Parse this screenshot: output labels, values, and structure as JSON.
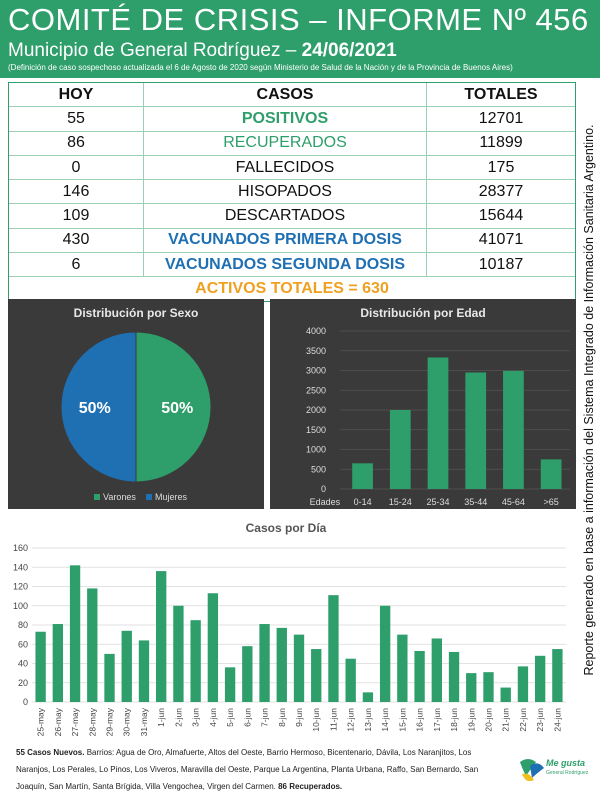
{
  "header": {
    "title": "COMITÉ DE CRISIS – INFORME Nº 456",
    "subtitle": "Municipio de General Rodríguez – ",
    "date": "24/06/2021",
    "note": "(Definición de caso sospechoso actualizada el 6 de Agosto de 2020 según Ministerio de Salud de la Nación y de la Provincia de Buenos Aires)"
  },
  "table": {
    "headers": {
      "hoy": "HOY",
      "casos": "CASOS",
      "totales": "TOTALES"
    },
    "rows": [
      {
        "hoy": "55",
        "casos": "POSITIVOS",
        "totales": "12701"
      },
      {
        "hoy": "86",
        "casos": "RECUPERADOS",
        "totales": "11899"
      },
      {
        "hoy": "0",
        "casos": "FALLECIDOS",
        "totales": "175"
      },
      {
        "hoy": "146",
        "casos": "HISOPADOS",
        "totales": "28377"
      },
      {
        "hoy": "109",
        "casos": "DESCARTADOS",
        "totales": "15644"
      },
      {
        "hoy": "430",
        "casos": "VACUNADOS PRIMERA DOSIS",
        "totales": "41071"
      },
      {
        "hoy": "6",
        "casos": "VACUNADOS SEGUNDA DOSIS",
        "totales": "10187"
      }
    ],
    "activos": "ACTIVOS TOTALES = 630"
  },
  "colors": {
    "green": "#2e9e6b",
    "blue": "#1f6fb3",
    "orange": "#f0a020",
    "bar": "#2e9e6b",
    "panel": "#3a3a3a"
  },
  "chart_data": [
    {
      "type": "pie",
      "title": "Distribución por Sexo",
      "categories": [
        "Varones",
        "Mujeres"
      ],
      "values": [
        50,
        50
      ],
      "labels": [
        "50%",
        "50%"
      ],
      "colors": [
        "#2e9e6b",
        "#1f6fb3"
      ],
      "legend": "bottom"
    },
    {
      "type": "bar",
      "title": "Distribución por Edad",
      "xlabel": "Edades",
      "categories": [
        "0-14",
        "15-24",
        "25-34",
        "35-44",
        "45-64",
        ">65"
      ],
      "values": [
        650,
        2000,
        3330,
        2950,
        2990,
        750
      ],
      "ylim": [
        0,
        4000
      ],
      "yticks": [
        "0",
        "500",
        "1000",
        "1500",
        "2000",
        "2500",
        "3000",
        "3500",
        "4000"
      ],
      "grid": true
    },
    {
      "type": "bar",
      "title": "Casos por Día",
      "categories": [
        "25-may",
        "26-may",
        "27-may",
        "28-may",
        "29-may",
        "30-may",
        "31-may",
        "1-jun",
        "2-jun",
        "3-jun",
        "4-jun",
        "5-jun",
        "6-jun",
        "7-jun",
        "8-jun",
        "9-jun",
        "10-jun",
        "11-jun",
        "12-jun",
        "13-jun",
        "14-jun",
        "15-jun",
        "16-jun",
        "17-jun",
        "18-jun",
        "19-jun",
        "20-jun",
        "21-jun",
        "22-jun",
        "23-jun",
        "24-jun"
      ],
      "values": [
        73,
        81,
        142,
        118,
        50,
        74,
        64,
        136,
        100,
        85,
        113,
        36,
        58,
        81,
        77,
        70,
        55,
        111,
        45,
        10,
        100,
        70,
        53,
        66,
        52,
        30,
        31,
        15,
        37,
        48,
        55
      ],
      "ylim": [
        0,
        160
      ],
      "yticks": [
        "0",
        "20",
        "40",
        "60",
        "80",
        "100",
        "120",
        "140",
        "160"
      ],
      "grid": true
    }
  ],
  "side_text": "Reporte generado en base a información del Sistema Integrado de Información Sanitaria Argentino.",
  "footer": {
    "lead": "55 Casos Nuevos.",
    "barrios": " Barrios: Agua de Oro, Almafuerte, Altos del Oeste, Barrio Hermoso, Bicentenario, Dávila, Los Naranjitos, Los Naranjos, Los Perales, Lo Pinos, Los Viveros, Maravilla del Oeste, Parque La Argentina, Planta Urbana, Raffo, San Bernardo, San Joaquín, San Martín, Santa Brígida, Villa Vengochea, Virgen del Carmen. ",
    "recuperados": "86 Recuperados."
  },
  "logo": {
    "text": "Me gusta",
    "sub": "General Rodríguez"
  }
}
